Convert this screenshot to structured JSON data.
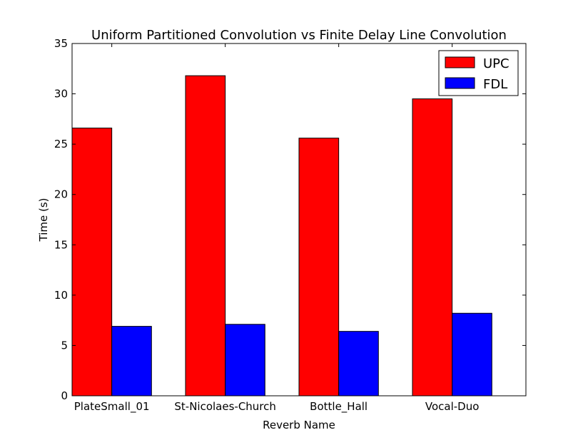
{
  "chart_data": {
    "type": "bar",
    "title": "Uniform Partitioned Convolution vs Finite Delay Line Convolution",
    "xlabel": "Reverb Name",
    "ylabel": "Time (s)",
    "categories": [
      "PlateSmall_01",
      "St-Nicolaes-Church",
      "Bottle_Hall",
      "Vocal-Duo"
    ],
    "series": [
      {
        "name": "UPC",
        "values": [
          26.6,
          31.8,
          25.6,
          29.5
        ],
        "color": "#ff0000"
      },
      {
        "name": "FDL",
        "values": [
          6.9,
          7.1,
          6.4,
          8.2
        ],
        "color": "#0000ff"
      }
    ],
    "ylim": [
      0,
      35
    ],
    "yticks": [
      0,
      5,
      10,
      15,
      20,
      25,
      30,
      35
    ],
    "grid": false,
    "legend_position": "top-right"
  }
}
